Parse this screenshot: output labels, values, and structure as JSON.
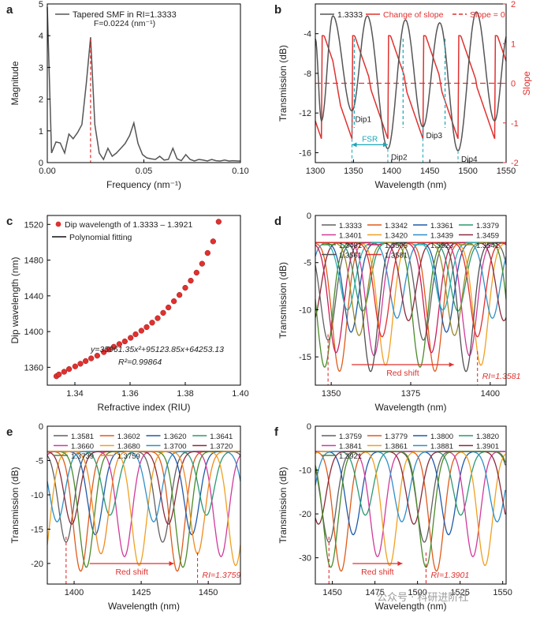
{
  "watermark": "公众号 · 科研进阶社",
  "chart_data": [
    {
      "panel": "a",
      "type": "line",
      "xlabel": "Frequency (nm⁻¹)",
      "ylabel": "Magnitude",
      "xlim": [
        0,
        0.1
      ],
      "ylim": [
        0,
        5
      ],
      "xticks": [
        "0.00",
        "0.05",
        "0.10"
      ],
      "yticks": [
        "0",
        "1",
        "2",
        "3",
        "4",
        "5"
      ],
      "legend": "Tapered SMF in RI=1.3333",
      "annotation": "F=0.0224 (nm⁻¹)",
      "marker_x": 0.0224,
      "series": [
        {
          "color": "#555555",
          "x": [
            0,
            0.0022,
            0.0045,
            0.0067,
            0.009,
            0.0112,
            0.0134,
            0.0157,
            0.0179,
            0.0202,
            0.0224,
            0.0246,
            0.0269,
            0.0291,
            0.0314,
            0.0336,
            0.0358,
            0.0381,
            0.0403,
            0.0426,
            0.0448,
            0.047,
            0.0493,
            0.0515,
            0.0538,
            0.056,
            0.0582,
            0.0605,
            0.0627,
            0.065,
            0.0672,
            0.0694,
            0.0717,
            0.0739,
            0.0762,
            0.0784,
            0.0806,
            0.0829,
            0.0851,
            0.0874,
            0.0896,
            0.0918,
            0.0941,
            0.0963,
            0.0986,
            0.1
          ],
          "y": [
            4.9,
            0.3,
            0.65,
            0.62,
            0.3,
            0.9,
            0.75,
            0.95,
            1.2,
            2.5,
            3.95,
            1.2,
            0.3,
            0.1,
            0.45,
            0.2,
            0.3,
            0.45,
            0.6,
            0.85,
            1.25,
            0.6,
            0.25,
            0.15,
            0.12,
            0.1,
            0.2,
            0.08,
            0.1,
            0.45,
            0.12,
            0.06,
            0.25,
            0.1,
            0.05,
            0.1,
            0.08,
            0.05,
            0.1,
            0.06,
            0.05,
            0.08,
            0.05,
            0.06,
            0.05,
            0.05
          ]
        }
      ]
    },
    {
      "panel": "b",
      "type": "line",
      "xlabel": "Wavelength (nm)",
      "ylabel": "Transmission (dB)",
      "y2label": "Slope",
      "xlim": [
        1300,
        1550
      ],
      "ylim": [
        -17,
        -1
      ],
      "y2lim": [
        -2,
        2
      ],
      "xticks": [
        "1300",
        "1350",
        "1400",
        "1450",
        "1500",
        "1550"
      ],
      "yticks": [
        "-16",
        "-12",
        "-8",
        "-4"
      ],
      "y2ticks": [
        "-2",
        "-1",
        "0",
        "1",
        "2"
      ],
      "legend": [
        "1.3333",
        "Change of slope",
        "Slope = 0"
      ],
      "dips": [
        {
          "label": "Dip1",
          "x": 1348,
          "y": -11.8
        },
        {
          "label": "Dip2",
          "x": 1395,
          "y": -15.6
        },
        {
          "label": "Dip3",
          "x": 1441,
          "y": -13.4
        },
        {
          "label": "Dip4",
          "x": 1487,
          "y": -15.8
        }
      ],
      "fsr_label": "FSR",
      "fsr_range": [
        1348,
        1395
      ],
      "dashed_lines_x": [
        1351,
        1415,
        1470
      ]
    },
    {
      "panel": "c",
      "type": "scatter",
      "xlabel": "Refractive index (RIU)",
      "ylabel": "Dip wavelength (nm)",
      "xlim": [
        1.33,
        1.4
      ],
      "ylim": [
        1340,
        1530
      ],
      "xticks": [
        "1.34",
        "1.36",
        "1.38",
        "1.40"
      ],
      "yticks": [
        "1360",
        "1400",
        "1440",
        "1480",
        "1520"
      ],
      "legend": [
        "Dip wavelength of 1.3333 – 1.3921",
        "Polynomial fitting"
      ],
      "equation": "y=35961.35x²+95123.85x+64253.13",
      "r2": "R²=0.99864",
      "x": [
        1.3333,
        1.3342,
        1.3361,
        1.3379,
        1.3401,
        1.342,
        1.3439,
        1.3459,
        1.3481,
        1.3505,
        1.3523,
        1.3541,
        1.3561,
        1.3581,
        1.3602,
        1.362,
        1.3641,
        1.366,
        1.368,
        1.37,
        1.372,
        1.3739,
        1.3759,
        1.3779,
        1.38,
        1.382,
        1.3841,
        1.3861,
        1.3881,
        1.3901,
        1.3921
      ],
      "y": [
        1350,
        1352,
        1355,
        1358,
        1361,
        1364,
        1367,
        1370,
        1373,
        1377,
        1380,
        1383,
        1386,
        1389,
        1393,
        1397,
        1401,
        1405,
        1410,
        1415,
        1421,
        1427,
        1434,
        1441,
        1449,
        1457,
        1466,
        1476,
        1488,
        1501,
        1523
      ]
    },
    {
      "panel": "d",
      "type": "line",
      "xlabel": "Wavelength (nm)",
      "ylabel": "Transmission (dB)",
      "xlim": [
        1345,
        1405
      ],
      "ylim": [
        -18,
        0
      ],
      "xticks": [
        "1350",
        "1375",
        "1400"
      ],
      "yticks": [
        "-15",
        "-10",
        "-5",
        "0"
      ],
      "legend": [
        "1.3333",
        "1.3342",
        "1.3361",
        "1.3379",
        "1.3401",
        "1.3420",
        "1.3439",
        "1.3459",
        "1.3481",
        "1.3505",
        "1.3523",
        "1.3541",
        "1.3561",
        "1.3581"
      ],
      "colors": [
        "#606060",
        "#e05a1a",
        "#1f5aa8",
        "#2a9a70",
        "#d03a9a",
        "#f0a020",
        "#2f8fc8",
        "#8a2a3a",
        "#4a8a2a",
        "#c81e5a",
        "#2ab0b0",
        "#9a8a2a",
        "#505050",
        "#e0312f"
      ],
      "dip_first": 1349,
      "dip_last": 1396,
      "shift_label": "Red shift",
      "end_label": "RI=1.3581"
    },
    {
      "panel": "e",
      "type": "line",
      "xlabel": "Wavelength (nm)",
      "ylabel": "Transmission (dB)",
      "xlim": [
        1390,
        1462
      ],
      "ylim": [
        -23,
        0
      ],
      "xticks": [
        "1400",
        "1425",
        "1450"
      ],
      "yticks": [
        "-20",
        "-15",
        "-10",
        "-5",
        "0"
      ],
      "legend": [
        "1.3581",
        "1.3602",
        "1.3620",
        "1.3641",
        "1.3660",
        "1.3680",
        "1.3700",
        "1.3720",
        "1.3739",
        "1.3759"
      ],
      "colors": [
        "#606060",
        "#e05a1a",
        "#1f5aa8",
        "#2a9a70",
        "#d03a9a",
        "#f0a020",
        "#2f8fc8",
        "#8a2a3a",
        "#4a8a2a",
        "#f08a20"
      ],
      "dip_first": 1397,
      "dip_last": 1446,
      "shift_label": "Red shift",
      "end_label": "RI=1.3759"
    },
    {
      "panel": "f",
      "type": "line",
      "xlabel": "Wavelength (nm)",
      "ylabel": "Transmission (dB)",
      "xlim": [
        1440,
        1552
      ],
      "ylim": [
        -36,
        0
      ],
      "xticks": [
        "1450",
        "1475",
        "1500",
        "1525",
        "1550"
      ],
      "yticks": [
        "-30",
        "-20",
        "-10",
        "0"
      ],
      "legend": [
        "1.3759",
        "1.3779",
        "1.3800",
        "1.3820",
        "1.3841",
        "1.3861",
        "1.3881",
        "1.3901",
        "1.3921"
      ],
      "colors": [
        "#606060",
        "#e05a1a",
        "#1f5aa8",
        "#2a9a70",
        "#d03a9a",
        "#f0a020",
        "#2f8fc8",
        "#8a2a3a",
        "#4a8a2a"
      ],
      "dip_first": 1448,
      "dip_last": 1505,
      "shift_label": "Red shift",
      "end_label": "RI=1.3901"
    }
  ]
}
